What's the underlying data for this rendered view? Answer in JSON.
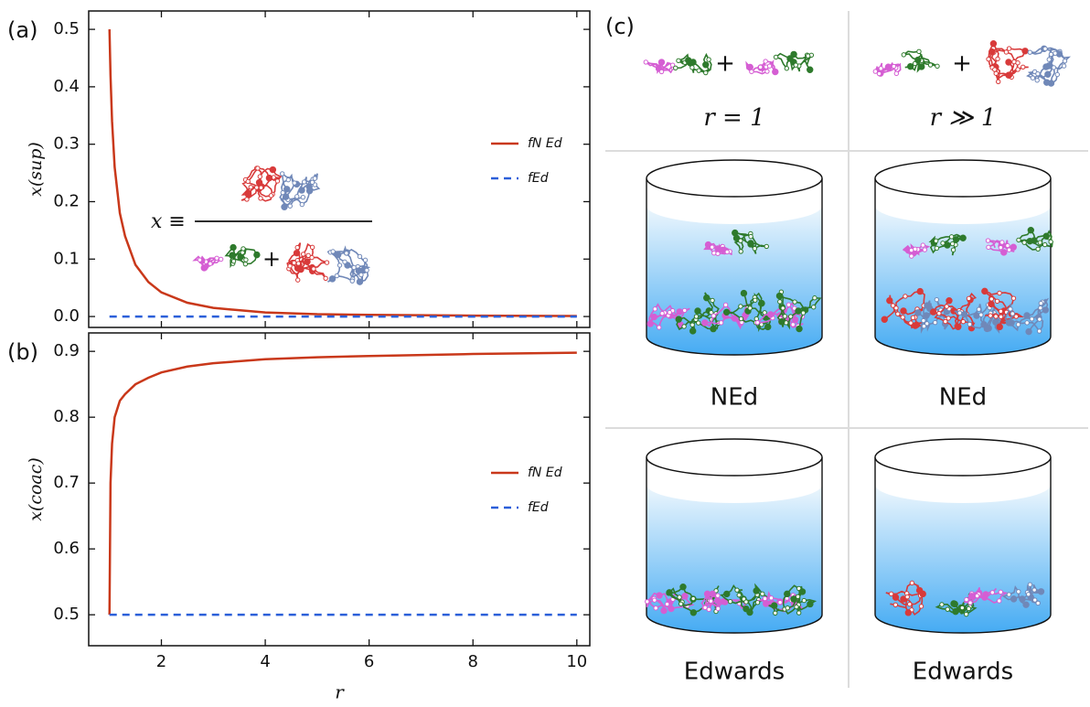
{
  "chart_data": [
    {
      "type": "line",
      "panel_label": "(a)",
      "ylabel": "x(sup)",
      "x": [
        1,
        1.02,
        1.05,
        1.1,
        1.2,
        1.3,
        1.5,
        1.75,
        2,
        2.5,
        3,
        4,
        5,
        6,
        8,
        10
      ],
      "series": [
        {
          "name": "fN Ed",
          "color": "#c9381a",
          "dash": false,
          "values": [
            0.5,
            0.42,
            0.34,
            0.26,
            0.18,
            0.14,
            0.09,
            0.06,
            0.042,
            0.024,
            0.015,
            0.007,
            0.004,
            0.003,
            0.0015,
            0.001
          ]
        },
        {
          "name": "fEd",
          "color": "#2b5fd9",
          "dash": true,
          "values": [
            0,
            0,
            0,
            0,
            0,
            0,
            0,
            0,
            0,
            0,
            0,
            0,
            0,
            0,
            0,
            0
          ]
        }
      ],
      "xlim": [
        0.6,
        10.25
      ],
      "xticks": [
        2,
        4,
        6,
        8,
        10
      ],
      "show_xtick_labels": false,
      "ylim": [
        -0.019,
        0.532
      ],
      "yticks": [
        {
          "value": 0,
          "label": "0.0"
        },
        0.1,
        0.2,
        0.3,
        0.4,
        0.5
      ],
      "legend": "right",
      "annotations": [
        "x ≡",
        "+"
      ]
    },
    {
      "type": "line",
      "panel_label": "(b)",
      "ylabel": "x(coac)",
      "xlabel": "r",
      "x": [
        1,
        1.02,
        1.05,
        1.1,
        1.2,
        1.3,
        1.5,
        1.75,
        2,
        2.5,
        3,
        4,
        5,
        6,
        8,
        10
      ],
      "series": [
        {
          "name": "fN Ed",
          "color": "#c9381a",
          "dash": false,
          "values": [
            0.5,
            0.7,
            0.76,
            0.8,
            0.825,
            0.835,
            0.85,
            0.86,
            0.868,
            0.877,
            0.882,
            0.888,
            0.891,
            0.893,
            0.896,
            0.898
          ]
        },
        {
          "name": "fEd",
          "color": "#2b5fd9",
          "dash": true,
          "values": [
            0.5,
            0.5,
            0.5,
            0.5,
            0.5,
            0.5,
            0.5,
            0.5,
            0.5,
            0.5,
            0.5,
            0.5,
            0.5,
            0.5,
            0.5,
            0.5
          ]
        }
      ],
      "xlim": [
        0.6,
        10.25
      ],
      "xticks": [
        2,
        4,
        6,
        8,
        10
      ],
      "show_xtick_labels": true,
      "ylim": [
        0.453,
        0.928
      ],
      "yticks": [
        0.5,
        0.6,
        0.7,
        0.8,
        0.9
      ],
      "legend": "right"
    }
  ],
  "diagram": {
    "panel_label": "(c)",
    "columns": [
      {
        "header": "r = 1",
        "operator": "+",
        "rows": [
          "NEd",
          "Edwards"
        ]
      },
      {
        "header": "r ≫ 1",
        "operator": "+",
        "rows": [
          "NEd",
          "Edwards"
        ]
      }
    ]
  }
}
